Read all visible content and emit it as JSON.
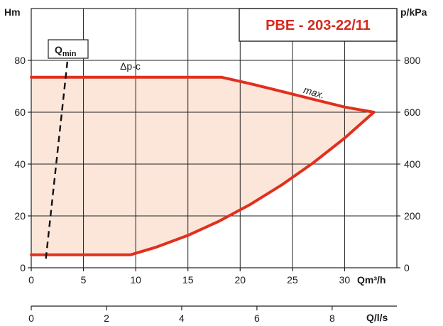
{
  "chart_data": {
    "type": "area",
    "title": "PBE - 203-22/11",
    "x_axis": {
      "label": "Qm³/h",
      "range": [
        0,
        35
      ],
      "ticks": [
        0,
        5,
        10,
        15,
        20,
        25,
        30
      ]
    },
    "x2_axis": {
      "label": "Q/l/s",
      "range": [
        0,
        9.72
      ],
      "ticks": [
        0,
        2,
        4,
        6,
        8
      ]
    },
    "y_axis": {
      "label": "Hm",
      "range": [
        0,
        100
      ],
      "ticks": [
        0,
        20,
        40,
        60,
        80
      ]
    },
    "y2_axis": {
      "label": "p/kPa",
      "range": [
        0,
        1000
      ],
      "ticks": [
        0,
        200,
        400,
        600,
        800
      ]
    },
    "grid": true,
    "colors": {
      "curve": "#e0301e",
      "fill": "#fbe6d9",
      "title": "#d42a1e",
      "grid": "#222222"
    },
    "series": [
      {
        "name": "max.",
        "style": "solid",
        "x": [
          0,
          18.2,
          21,
          24,
          27,
          30,
          32.8
        ],
        "y": [
          73.5,
          73.5,
          71,
          68,
          65,
          62,
          60
        ]
      },
      {
        "name": "Δp-c",
        "style": "solid",
        "x": [
          0,
          18.2
        ],
        "y": [
          73.5,
          73.5
        ]
      },
      {
        "name": "min",
        "style": "solid",
        "x": [
          0,
          9.5,
          12,
          15,
          18,
          21,
          24,
          27,
          30,
          32.8
        ],
        "y": [
          5,
          5,
          8,
          12.5,
          18,
          24.5,
          32,
          40.5,
          50,
          60
        ]
      },
      {
        "name": "Qmin",
        "style": "dashed",
        "x": [
          1.4,
          3.5
        ],
        "y": [
          3.5,
          81
        ]
      }
    ],
    "annotations": [
      {
        "text": "Qmin",
        "main": "Q",
        "sub": "min",
        "x": 2.7,
        "y": 83
      },
      {
        "text": "Δp-c",
        "x": 8.5,
        "y": 76.5
      },
      {
        "text": "max.",
        "x": 26,
        "y": 67.5,
        "rotate": 16
      }
    ]
  }
}
